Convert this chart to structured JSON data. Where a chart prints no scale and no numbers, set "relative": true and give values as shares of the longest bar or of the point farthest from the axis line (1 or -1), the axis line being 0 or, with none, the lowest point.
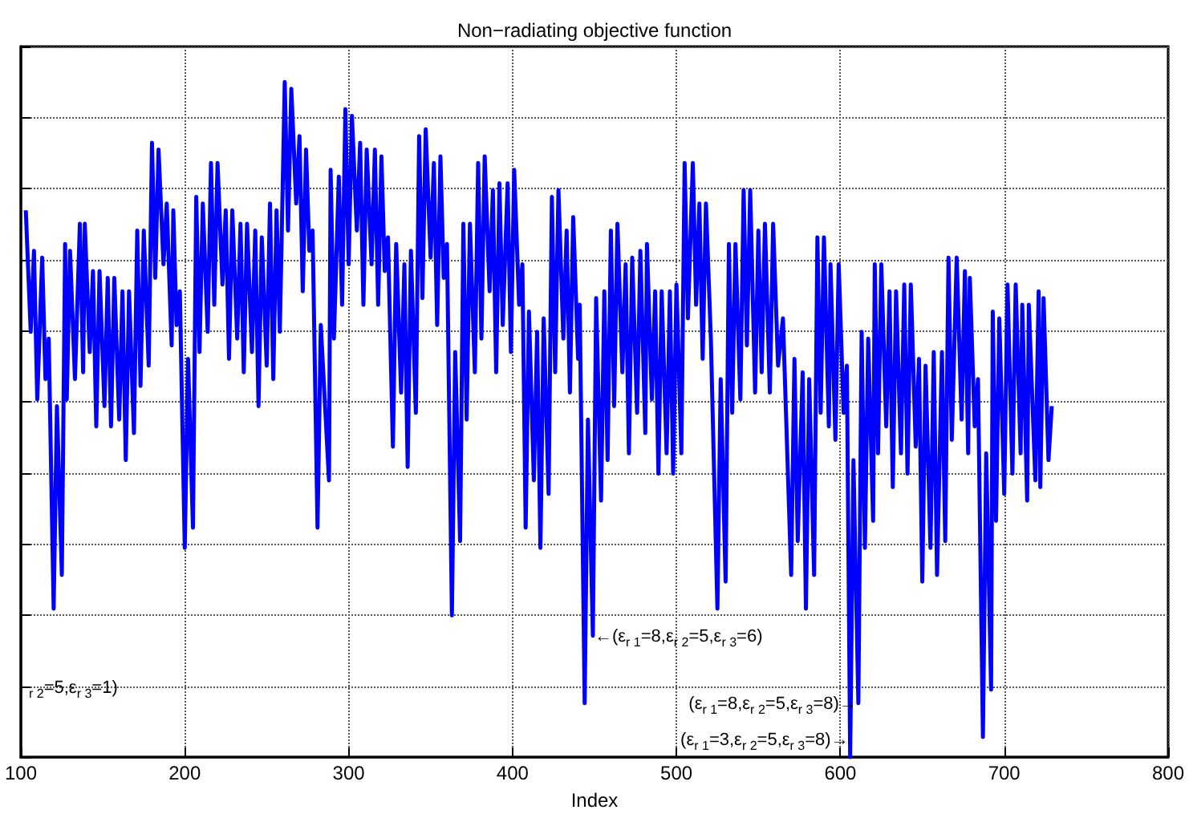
{
  "chart_data": {
    "type": "line",
    "title": "Non−radiating objective function",
    "xlabel": "Index",
    "relative": true,
    "xlim": [
      100,
      800
    ],
    "xticks": [
      100,
      200,
      300,
      400,
      500,
      600,
      700,
      800
    ],
    "grid": true,
    "color": "#0000ff",
    "x": [
      103,
      106,
      108,
      110,
      113,
      115,
      117,
      120,
      122,
      125,
      127,
      128,
      130,
      133,
      136,
      138,
      139,
      142,
      144,
      146,
      148,
      151,
      153,
      155,
      157,
      160,
      162,
      164,
      166,
      169,
      171,
      173,
      175,
      178,
      180,
      182,
      184,
      187,
      189,
      192,
      193,
      195,
      197,
      200,
      202,
      205,
      207,
      209,
      211,
      214,
      216,
      218,
      220,
      223,
      225,
      227,
      229,
      232,
      234,
      236,
      238,
      241,
      243,
      245,
      247,
      250,
      252,
      254,
      256,
      258,
      261,
      263,
      265,
      268,
      270,
      272,
      274,
      276,
      278,
      281,
      283,
      288,
      289,
      291,
      294,
      296,
      298,
      300,
      302,
      305,
      307,
      309,
      311,
      314,
      316,
      318,
      320,
      322,
      324,
      327,
      329,
      332,
      334,
      336,
      338,
      341,
      343,
      345,
      347,
      350,
      352,
      354,
      356,
      358,
      360,
      363,
      365,
      368,
      370,
      372,
      374,
      377,
      379,
      381,
      383,
      386,
      388,
      390,
      392,
      394,
      397,
      399,
      401,
      404,
      406,
      408,
      410,
      413,
      415,
      417,
      419,
      422,
      424,
      426,
      428,
      431,
      433,
      435,
      437,
      440,
      441,
      444,
      446,
      449,
      451,
      454,
      456,
      458,
      460,
      462,
      464,
      467,
      469,
      471,
      473,
      476,
      478,
      481,
      482,
      485,
      487,
      489,
      491,
      494,
      496,
      498,
      500,
      503,
      505,
      507,
      510,
      512,
      514,
      516,
      518,
      521,
      525,
      527,
      530,
      532,
      534,
      536,
      539,
      541,
      543,
      545,
      548,
      550,
      552,
      554,
      557,
      559,
      562,
      565,
      570,
      572,
      574,
      577,
      579,
      581,
      584,
      586,
      588,
      590,
      593,
      594,
      597,
      599,
      602,
      604,
      606,
      608,
      611,
      613,
      615,
      617,
      620,
      621,
      623,
      625,
      628,
      630,
      632,
      634,
      637,
      639,
      641,
      643,
      646,
      648,
      650,
      652,
      655,
      657,
      659,
      662,
      664,
      666,
      668,
      671,
      674,
      676,
      678,
      679,
      682,
      684,
      687,
      689,
      692,
      693,
      695,
      697,
      700,
      702,
      705,
      707,
      710,
      711,
      714,
      715,
      719,
      721,
      722,
      724,
      727,
      729
    ],
    "values": [
      0.81,
      0.63,
      0.75,
      0.53,
      0.74,
      0.56,
      0.62,
      0.22,
      0.52,
      0.27,
      0.76,
      0.53,
      0.75,
      0.56,
      0.79,
      0.57,
      0.79,
      0.6,
      0.72,
      0.49,
      0.72,
      0.52,
      0.71,
      0.49,
      0.71,
      0.5,
      0.69,
      0.44,
      0.69,
      0.48,
      0.78,
      0.55,
      0.78,
      0.58,
      0.91,
      0.71,
      0.9,
      0.73,
      0.82,
      0.61,
      0.81,
      0.64,
      0.69,
      0.31,
      0.59,
      0.34,
      0.83,
      0.6,
      0.82,
      0.63,
      0.88,
      0.67,
      0.88,
      0.7,
      0.81,
      0.59,
      0.81,
      0.62,
      0.79,
      0.57,
      0.79,
      0.6,
      0.78,
      0.52,
      0.77,
      0.58,
      0.82,
      0.56,
      0.81,
      0.63,
      1,
      0.78,
      0.99,
      0.82,
      0.92,
      0.69,
      0.9,
      0.75,
      0.78,
      0.34,
      0.64,
      0.41,
      0.87,
      0.62,
      0.86,
      0.67,
      0.96,
      0.73,
      0.95,
      0.78,
      0.91,
      0.67,
      0.9,
      0.73,
      0.9,
      0.67,
      0.89,
      0.72,
      0.77,
      0.46,
      0.76,
      0.54,
      0.73,
      0.43,
      0.75,
      0.51,
      0.92,
      0.68,
      0.93,
      0.74,
      0.88,
      0.64,
      0.89,
      0.71,
      0.76,
      0.21,
      0.6,
      0.32,
      0.79,
      0.5,
      0.79,
      0.57,
      0.88,
      0.62,
      0.89,
      0.69,
      0.84,
      0.57,
      0.85,
      0.64,
      0.85,
      0.6,
      0.87,
      0.67,
      0.73,
      0.34,
      0.66,
      0.41,
      0.63,
      0.31,
      0.65,
      0.39,
      0.83,
      0.57,
      0.84,
      0.62,
      0.78,
      0.54,
      0.8,
      0.59,
      0.67,
      0.08,
      0.5,
      0.18,
      0.68,
      0.38,
      0.69,
      0.44,
      0.78,
      0.52,
      0.79,
      0.57,
      0.73,
      0.45,
      0.74,
      0.51,
      0.75,
      0.48,
      0.76,
      0.53,
      0.69,
      0.42,
      0.69,
      0.45,
      0.69,
      0.42,
      0.7,
      0.45,
      0.88,
      0.65,
      0.88,
      0.67,
      0.82,
      0.59,
      0.82,
      0.62,
      0.22,
      0.56,
      0.26,
      0.76,
      0.51,
      0.76,
      0.53,
      0.84,
      0.61,
      0.84,
      0.54,
      0.78,
      0.57,
      0.79,
      0.54,
      0.79,
      0.58,
      0.65,
      0.27,
      0.59,
      0.32,
      0.57,
      0.22,
      0.56,
      0.27,
      0.77,
      0.51,
      0.77,
      0.49,
      0.73,
      0.47,
      0.73,
      0.51,
      0.58,
      0,
      0.44,
      0.08,
      0.63,
      0.31,
      0.62,
      0.35,
      0.73,
      0.45,
      0.73,
      0.49,
      0.69,
      0.4,
      0.69,
      0.45,
      0.7,
      0.42,
      0.7,
      0.46,
      0.59,
      0.26,
      0.58,
      0.31,
      0.6,
      0.27,
      0.6,
      0.32,
      0.74,
      0.47,
      0.74,
      0.5,
      0.72,
      0.45,
      0.71,
      0.49,
      0.56,
      0.03,
      0.45,
      0.1,
      0.66,
      0.35,
      0.65,
      0.39,
      0.7,
      0.42,
      0.7,
      0.45,
      0.67,
      0.38,
      0.67,
      0.41,
      0.69,
      0.4,
      0.68,
      0.44,
      0.52
    ],
    "annotations": [
      {
        "text": "←(ε$_{r 1}$=8,ε$_{r 2}$=5,ε$_{r 3}$=6)",
        "x": 449,
        "y": 0.18
      },
      {
        "text": "(ε$_{r 1}$=8,ε$_{r 2}$=5,ε$_{r 3}$=8)→",
        "x": 611,
        "y": 0.08
      },
      {
        "text": "(ε$_{r 1}$=3,ε$_{r 2}$=5,ε$_{r 3}$=8)→",
        "x": 606,
        "y": 0
      },
      "$_{r 2}$=5,ε$_{r 3}$=1)"
    ]
  }
}
